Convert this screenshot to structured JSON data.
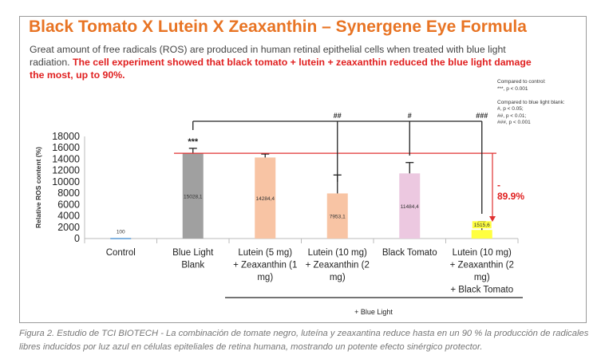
{
  "title": "Black Tomato X Lutein X Zeaxanthin – Synergene Eye Formula",
  "intro_plain": "Great amount of free radicals (ROS) are produced in human retinal epithelial cells when treated with blue light radiation. ",
  "intro_bold": "The cell experiment showed that black tomato + lutein + zeaxanthin reduced the blue light damage the most, up to 90%.",
  "legend": {
    "control_title": "Compared to control:",
    "control_1": "***, p < 0.001",
    "blank_title": "Compared to blue light blank:",
    "blank_1": "#, p < 0.05;",
    "blank_2": "##, p < 0.01;",
    "blank_3": "###, p < 0.001"
  },
  "reduction_sign": "-",
  "reduction": "89.9%",
  "caption": "Figura 2. Estudio de TCI BIOTECH - La combinación de tomate negro, luteína y zeaxantina reduce hasta en un 90 % la producción de radicales libres inducidos por luz azul en células epiteliales de retina humana, mostrando un potente efecto sinérgico protector.",
  "chart_data": {
    "type": "bar",
    "ylabel": "Relative ROS content (%)",
    "ylim": [
      0,
      18000
    ],
    "yticks": [
      "0",
      "2000",
      "4000",
      "6000",
      "8000",
      "10000",
      "12000",
      "14000",
      "16000",
      "18000"
    ],
    "categories": [
      [
        "Control"
      ],
      [
        "Blue Light",
        "Blank"
      ],
      [
        "Lutein (5 mg)",
        "+ Zeaxanthin (1",
        "mg)"
      ],
      [
        "Lutein (10 mg)",
        "+ Zeaxanthin (2",
        "mg)"
      ],
      [
        "Black Tomato"
      ],
      [
        "Lutein (10 mg)",
        "+ Zeaxanthin (2",
        "mg)",
        "+ Black Tomato"
      ]
    ],
    "values": [
      100,
      15028.1,
      14284.4,
      7953.1,
      11484.4,
      1515.6
    ],
    "value_labels": [
      "100",
      "15028,1",
      "14284,4",
      "7953,1",
      "11484,4",
      "1515,6"
    ],
    "error_upper": [
      100,
      15900,
      14900,
      11200,
      13400,
      3000
    ],
    "colors": [
      "#5b9bd5",
      "#a0a0a0",
      "#f8c4a4",
      "#f8c4a4",
      "#ecc8e0",
      "#ffff40"
    ],
    "significance": [
      "",
      "***",
      "",
      "##",
      "#",
      "###"
    ],
    "group_label": "+ Blue Light",
    "reference_line": 15028.1
  }
}
